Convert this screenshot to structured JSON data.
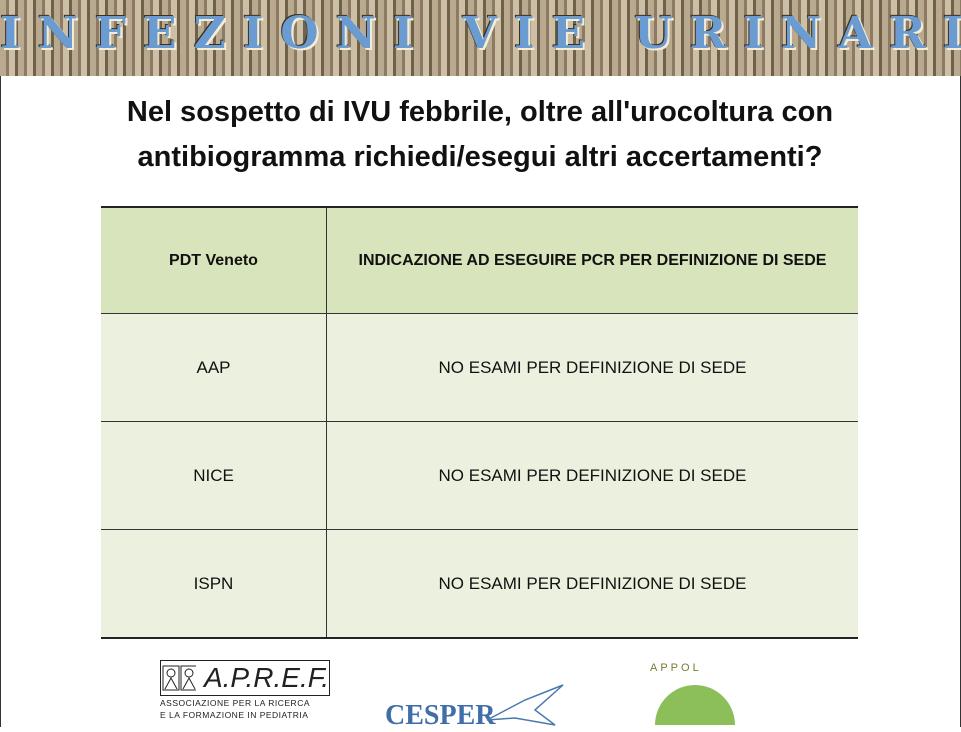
{
  "banner": {
    "title": "INFEZIONI VIE URINARIE"
  },
  "slide": {
    "title": "Nel sospetto di IVU febbrile, oltre all'urocoltura con antibiogramma richiedi/esegui altri accertamenti?"
  },
  "table": {
    "header": [
      "PDT Veneto",
      "INDICAZIONE AD ESEGUIRE PCR PER DEFINIZIONE DI SEDE"
    ],
    "rows": [
      [
        "AAP",
        "NO ESAMI PER DEFINIZIONE DI SEDE"
      ],
      [
        "NICE",
        "NO ESAMI PER DEFINIZIONE DI SEDE"
      ],
      [
        "ISPN",
        "NO ESAMI PER DEFINIZIONE DI SEDE"
      ]
    ]
  },
  "logos": {
    "apref": {
      "name": "A.P.R.E.F.",
      "subtitle_1": "ASSOCIAZIONE PER LA RICERCA",
      "subtitle_2": "E LA FORMAZIONE IN PEDIATRIA"
    },
    "cesper": "CESPER",
    "appol": "APPOL"
  }
}
